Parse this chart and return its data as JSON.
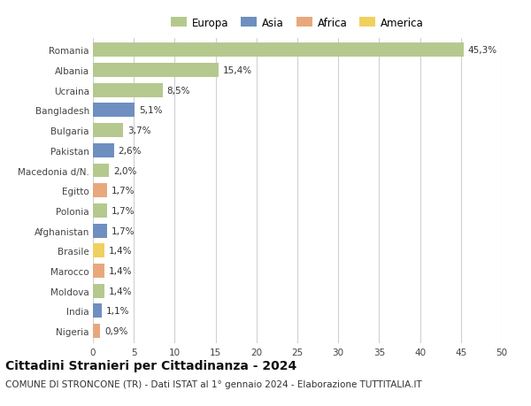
{
  "countries": [
    "Romania",
    "Albania",
    "Ucraina",
    "Bangladesh",
    "Bulgaria",
    "Pakistan",
    "Macedonia d/N.",
    "Egitto",
    "Polonia",
    "Afghanistan",
    "Brasile",
    "Marocco",
    "Moldova",
    "India",
    "Nigeria"
  ],
  "values": [
    45.3,
    15.4,
    8.5,
    5.1,
    3.7,
    2.6,
    2.0,
    1.7,
    1.7,
    1.7,
    1.4,
    1.4,
    1.4,
    1.1,
    0.9
  ],
  "labels": [
    "45,3%",
    "15,4%",
    "8,5%",
    "5,1%",
    "3,7%",
    "2,6%",
    "2,0%",
    "1,7%",
    "1,7%",
    "1,7%",
    "1,4%",
    "1,4%",
    "1,4%",
    "1,1%",
    "0,9%"
  ],
  "regions": [
    "Europa",
    "Europa",
    "Europa",
    "Asia",
    "Europa",
    "Asia",
    "Europa",
    "Africa",
    "Europa",
    "Asia",
    "America",
    "Africa",
    "Europa",
    "Asia",
    "Africa"
  ],
  "region_colors": {
    "Europa": "#b5c98e",
    "Asia": "#6e8fbf",
    "Africa": "#e8a87c",
    "America": "#f0d060"
  },
  "legend_order": [
    "Europa",
    "Asia",
    "Africa",
    "America"
  ],
  "xlim": [
    0,
    50
  ],
  "xticks": [
    0,
    5,
    10,
    15,
    20,
    25,
    30,
    35,
    40,
    45,
    50
  ],
  "title": "Cittadini Stranieri per Cittadinanza - 2024",
  "subtitle": "COMUNE DI STRONCONE (TR) - Dati ISTAT al 1° gennaio 2024 - Elaborazione TUTTITALIA.IT",
  "background_color": "#ffffff",
  "bar_height": 0.7,
  "grid_color": "#d0d0d0",
  "label_fontsize": 7.5,
  "ytick_fontsize": 7.5,
  "xtick_fontsize": 7.5,
  "title_fontsize": 10,
  "subtitle_fontsize": 7.5
}
